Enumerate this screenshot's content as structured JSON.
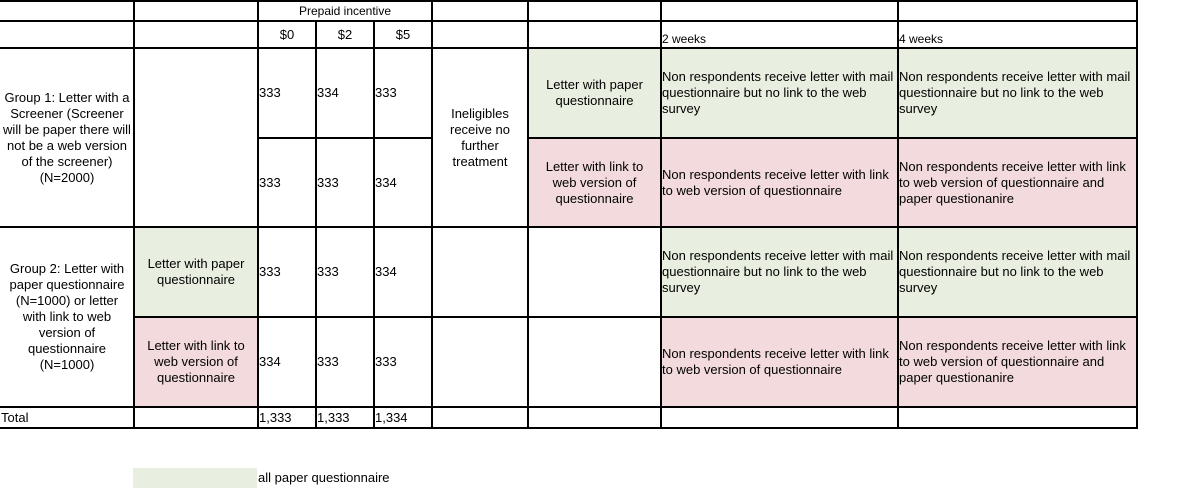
{
  "header": {
    "prepaid_incentive": "Prepaid incentive",
    "amount_0": "$0",
    "amount_2": "$2",
    "amount_5": "$5",
    "week_2": "2 weeks",
    "week_4": "4 weeks"
  },
  "group1": {
    "label": "Group 1: Letter with a Screener (Screener will be paper there will not be a web version of the screener) (N=2000)",
    "ineligibles": "Ineligibles receive no further treatment",
    "row_a": {
      "counts": [
        "333",
        "334",
        "333"
      ],
      "treatment": "Letter with paper questionnaire",
      "week2": "Non respondents receive letter with mail questionnaire but no link to the web survey",
      "week4": "Non respondents receive letter with mail questionnaire but no link to the web survey"
    },
    "row_b": {
      "counts": [
        "333",
        "333",
        "334"
      ],
      "treatment": "Letter with link to web version of questionnaire",
      "week2": "Non respondents receive letter with link to web version of questionnaire",
      "week4": "Non respondents receive letter with link to web version of questionnaire and paper questionanire"
    }
  },
  "group2": {
    "label": "Group 2: Letter with paper questionnaire (N=1000) or letter with link to web version of questionnaire (N=1000)",
    "row_a": {
      "treatment": "Letter with paper questionnaire",
      "counts": [
        "333",
        "333",
        "334"
      ],
      "week2": "Non respondents receive letter with mail questionnaire but no link to the web survey",
      "week4": "Non respondents receive letter with mail questionnaire but no link to the web survey"
    },
    "row_b": {
      "treatment": "Letter with link to web version of questionnaire",
      "counts": [
        "334",
        "333",
        "333"
      ],
      "week2": "Non respondents receive letter with link to web version of questionnaire",
      "week4": "Non respondents receive letter with link to web version of questionnaire and paper questionanire"
    }
  },
  "total": {
    "label": "Total",
    "counts": [
      "1,333",
      "1,333",
      "1,334"
    ]
  },
  "legend": {
    "green_label": "all paper questionnaire"
  },
  "colors": {
    "paper_green": "#e9efe0",
    "web_pink": "#f3dbdd"
  }
}
